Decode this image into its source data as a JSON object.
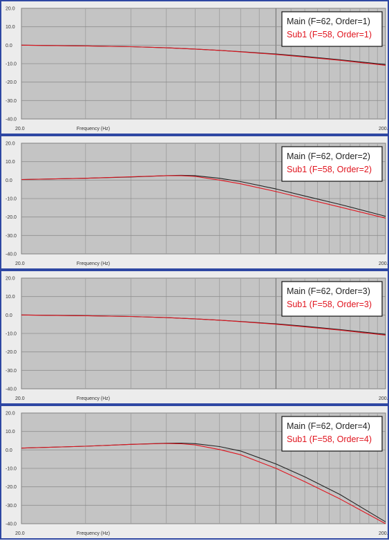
{
  "chart_data": [
    {
      "type": "line",
      "xlabel": "Frequency (Hz)",
      "x_ticks": [
        "20.0",
        "200."
      ],
      "y_ticks": [
        "20.0",
        "10.0",
        "0.0",
        "-10.0",
        "-20.0",
        "-30.0",
        "-40.0"
      ],
      "xlim": [
        20,
        200
      ],
      "ylim": [
        -40,
        20
      ],
      "x_scale": "log",
      "grid": true,
      "legend_position": "top-right",
      "colors": {
        "main": "#222222",
        "sub": "#e0141e"
      },
      "series": [
        {
          "name": "Main (F=62, Order=1)",
          "x": [
            20,
            30,
            40,
            50,
            60,
            70,
            80,
            100,
            120,
            150,
            200
          ],
          "y": [
            0.0,
            -0.4,
            -0.8,
            -1.4,
            -2.1,
            -2.8,
            -3.5,
            -4.8,
            -6.1,
            -7.9,
            -10.5
          ]
        },
        {
          "name": "Sub1 (F=58, Order=1)",
          "x": [
            20,
            30,
            40,
            50,
            60,
            70,
            80,
            100,
            120,
            150,
            200
          ],
          "y": [
            0.0,
            -0.4,
            -0.8,
            -1.4,
            -2.1,
            -2.8,
            -3.6,
            -5.0,
            -6.4,
            -8.2,
            -10.9
          ]
        }
      ]
    },
    {
      "type": "line",
      "xlabel": "Frequency (Hz)",
      "x_ticks": [
        "20.0",
        "200."
      ],
      "y_ticks": [
        "20.0",
        "10.0",
        "0.0",
        "-10.0",
        "-20.0",
        "-30.0",
        "-40.0"
      ],
      "xlim": [
        20,
        200
      ],
      "ylim": [
        -40,
        20
      ],
      "x_scale": "log",
      "grid": true,
      "legend_position": "top-right",
      "colors": {
        "main": "#222222",
        "sub": "#e0141e"
      },
      "series": [
        {
          "name": "Main (F=62, Order=2)",
          "x": [
            20,
            30,
            40,
            50,
            55,
            60,
            70,
            80,
            100,
            120,
            150,
            200
          ],
          "y": [
            0.3,
            1.0,
            1.7,
            2.4,
            2.6,
            2.4,
            1.0,
            -0.8,
            -4.8,
            -8.6,
            -13.2,
            -19.6
          ]
        },
        {
          "name": "Sub1 (F=58, Order=2)",
          "x": [
            20,
            30,
            40,
            50,
            55,
            60,
            70,
            80,
            100,
            120,
            150,
            200
          ],
          "y": [
            0.3,
            1.0,
            1.8,
            2.4,
            2.4,
            2.0,
            0.0,
            -2.0,
            -6.2,
            -10.0,
            -14.6,
            -20.6
          ]
        }
      ]
    },
    {
      "type": "line",
      "xlabel": "Frequency (Hz)",
      "x_ticks": [
        "20.0",
        "200."
      ],
      "y_ticks": [
        "20.0",
        "10.0",
        "0.0",
        "-10.0",
        "-20.0",
        "-30.0",
        "-40.0"
      ],
      "xlim": [
        20,
        200
      ],
      "ylim": [
        -40,
        20
      ],
      "x_scale": "log",
      "grid": true,
      "legend_position": "top-right",
      "colors": {
        "main": "#222222",
        "sub": "#e0141e"
      },
      "series": [
        {
          "name": "Main (F=62, Order=3)",
          "x": [
            20,
            30,
            40,
            50,
            60,
            70,
            80,
            100,
            120,
            150,
            200
          ],
          "y": [
            0.0,
            -0.4,
            -0.8,
            -1.4,
            -2.1,
            -2.8,
            -3.5,
            -4.8,
            -6.1,
            -7.9,
            -10.5
          ]
        },
        {
          "name": "Sub1 (F=58, Order=3)",
          "x": [
            20,
            30,
            40,
            50,
            60,
            70,
            80,
            100,
            120,
            150,
            200
          ],
          "y": [
            0.0,
            -0.4,
            -0.8,
            -1.4,
            -2.1,
            -2.8,
            -3.6,
            -5.0,
            -6.4,
            -8.2,
            -10.9
          ]
        }
      ]
    },
    {
      "type": "line",
      "xlabel": "Frequency (Hz)",
      "x_ticks": [
        "20.0",
        "200."
      ],
      "y_ticks": [
        "20.0",
        "10.0",
        "0.0",
        "-10.0",
        "-20.0",
        "-30.0",
        "-40.0"
      ],
      "xlim": [
        20,
        200
      ],
      "ylim": [
        -40,
        20
      ],
      "x_scale": "log",
      "grid": true,
      "legend_position": "top-right",
      "colors": {
        "main": "#222222",
        "sub": "#e0141e"
      },
      "series": [
        {
          "name": "Main (F=62, Order=4)",
          "x": [
            20,
            30,
            40,
            50,
            55,
            60,
            70,
            80,
            100,
            120,
            150,
            200
          ],
          "y": [
            1.0,
            2.0,
            3.0,
            3.6,
            3.7,
            3.4,
            1.8,
            -0.6,
            -7.6,
            -14.6,
            -24.2,
            -39.0
          ]
        },
        {
          "name": "Sub1 (F=58, Order=4)",
          "x": [
            20,
            30,
            40,
            50,
            55,
            60,
            70,
            80,
            100,
            120,
            150,
            200
          ],
          "y": [
            1.0,
            2.0,
            3.0,
            3.5,
            3.3,
            2.7,
            0.2,
            -2.6,
            -10.0,
            -17.2,
            -26.6,
            -40.0
          ]
        }
      ]
    }
  ]
}
